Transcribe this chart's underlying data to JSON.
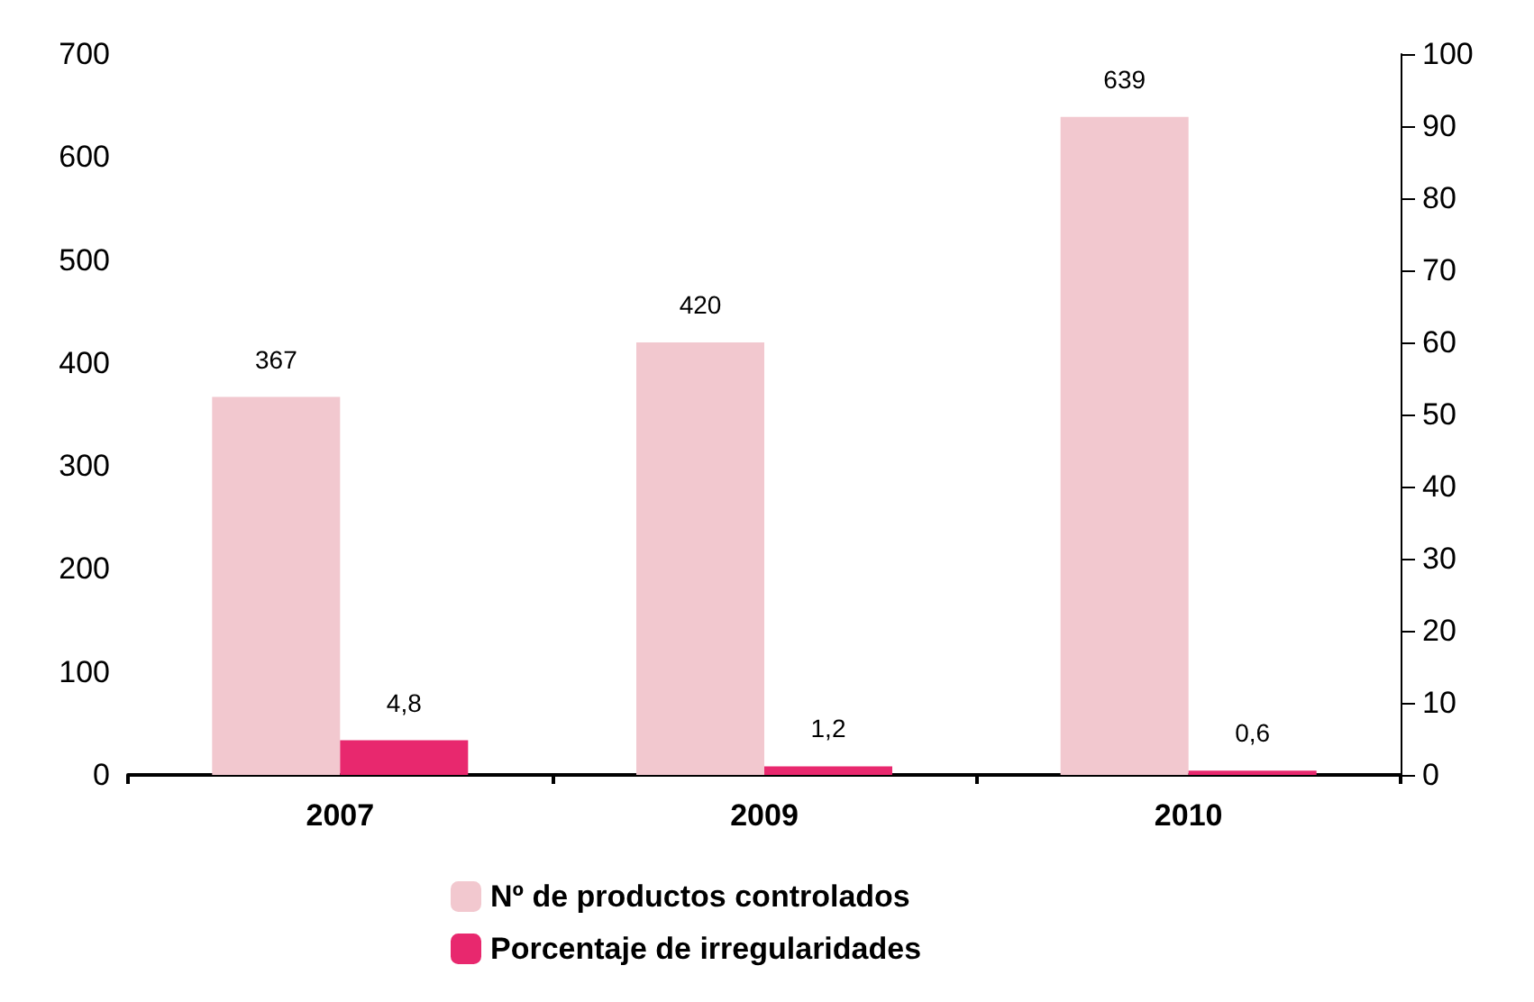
{
  "chart_data": {
    "type": "bar",
    "categories": [
      "2007",
      "2009",
      "2010"
    ],
    "series": [
      {
        "name": "Nº de productos controlados",
        "color": "#f2c8cf",
        "values": [
          367,
          420,
          639
        ],
        "value_labels": [
          "367",
          "420",
          "639"
        ]
      },
      {
        "name": "Porcentaje de irregularidades",
        "color": "#e8286e",
        "values": [
          4.8,
          1.2,
          0.6
        ],
        "value_labels": [
          "4,8",
          "1,2",
          "0,6"
        ],
        "axis": "y2"
      }
    ],
    "ylim": [
      0,
      700
    ],
    "yticks": [
      0,
      100,
      200,
      300,
      400,
      500,
      600,
      700
    ],
    "y2lim": [
      0,
      100
    ],
    "y2ticks": [
      0,
      10,
      20,
      30,
      40,
      50,
      60,
      70,
      80,
      90,
      100
    ],
    "grid": false,
    "legend": "bottom"
  }
}
